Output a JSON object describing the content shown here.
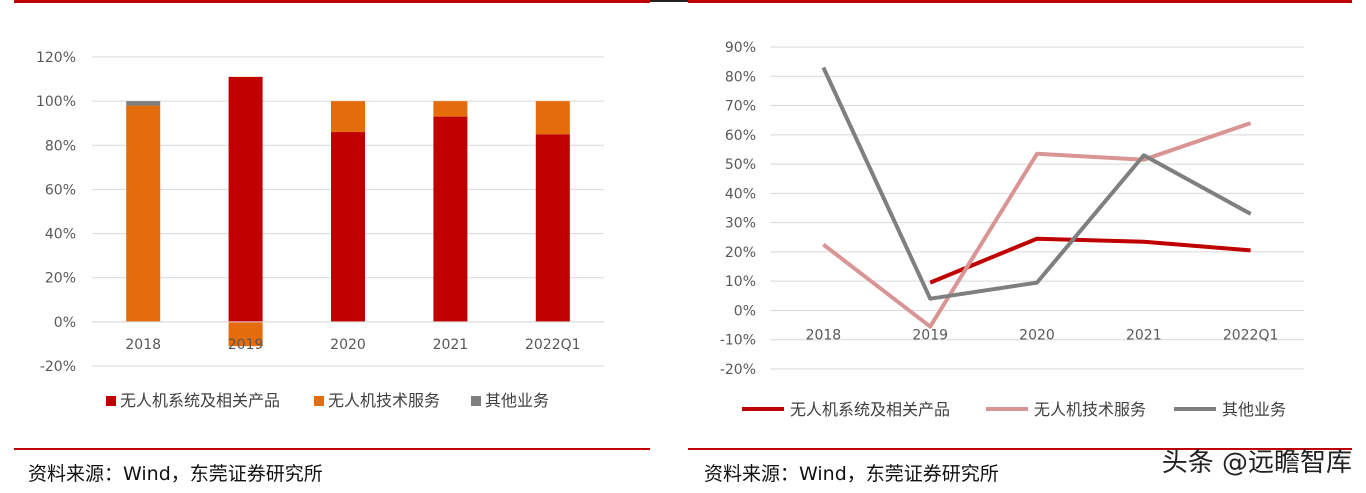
{
  "footer": {
    "left_source": "资料来源：Wind，东莞证券研究所",
    "right_source": "资料来源：Wind，东莞证券研究所",
    "watermark": "头条 @远瞻智库"
  },
  "colors": {
    "accent": "#c00000",
    "s1": "#c00000",
    "s2": "#e46c0a",
    "s3": "#7f7f7f",
    "line_s2": "#d99594",
    "grid": "#d9d9d9"
  },
  "chart_data": [
    {
      "type": "bar",
      "stacked": true,
      "title": "",
      "xlabel": "",
      "ylabel": "",
      "categories": [
        "2018",
        "2019",
        "2020",
        "2021",
        "2022Q1"
      ],
      "yticks": [
        "-20%",
        "0%",
        "20%",
        "40%",
        "60%",
        "80%",
        "100%",
        "120%"
      ],
      "ylim": [
        -20,
        120
      ],
      "grid": true,
      "legend_position": "bottom",
      "series": [
        {
          "name": "无人机系统及相关产品",
          "values": [
            0,
            111,
            86,
            93,
            85
          ]
        },
        {
          "name": "无人机技术服务",
          "values": [
            98,
            -11,
            14,
            7,
            15
          ]
        },
        {
          "name": "其他业务",
          "values": [
            2,
            0,
            0,
            0,
            0
          ]
        }
      ]
    },
    {
      "type": "line",
      "title": "",
      "xlabel": "",
      "ylabel": "",
      "categories": [
        "2018",
        "2019",
        "2020",
        "2021",
        "2022Q1"
      ],
      "yticks": [
        "-20%",
        "-10%",
        "0%",
        "10%",
        "20%",
        "30%",
        "40%",
        "50%",
        "60%",
        "70%",
        "80%",
        "90%"
      ],
      "ylim": [
        -20,
        90
      ],
      "grid": true,
      "legend_position": "bottom",
      "series": [
        {
          "name": "无人机系统及相关产品",
          "values": [
            null,
            9.5,
            24.5,
            23.5,
            20.5
          ]
        },
        {
          "name": "无人机技术服务",
          "values": [
            22.5,
            -5.5,
            53.5,
            51.5,
            64
          ]
        },
        {
          "name": "其他业务",
          "values": [
            83,
            4,
            9.5,
            53,
            33
          ]
        }
      ]
    }
  ]
}
